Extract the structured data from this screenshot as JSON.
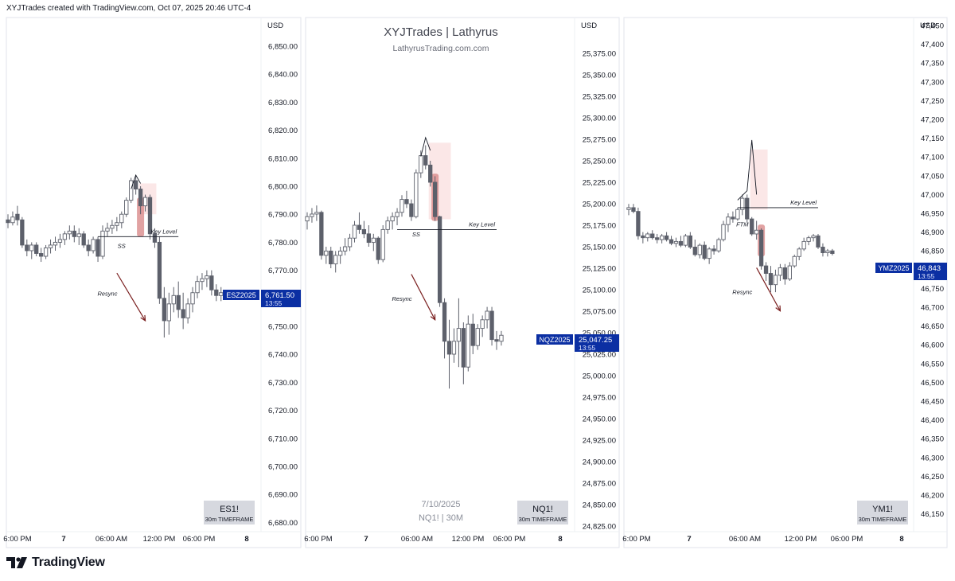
{
  "header": {
    "text": "XYJTrades created with TradingView.com, Oct 07, 2025 20:46 UTC-4"
  },
  "footer": {
    "brand": "TradingView",
    "logo_icon": "tradingview-logo-icon"
  },
  "watermark": {
    "title": "XYJTrades | Lathyrus",
    "subtitle": "LathyrusTrading.com.com"
  },
  "colors": {
    "candle_body": "#5d606b",
    "candle_up_fill": "#ffffff",
    "price_tag": "#0b2fa3",
    "highlight": "#f7c9c9",
    "highlight_candle": "#d98b8b",
    "arrow": "#7a1f1f",
    "symbol_box": "#d1d4dc"
  },
  "chart_data": [
    {
      "type": "candlestick",
      "currency": "USD",
      "symbol": "ES1!",
      "timeframe": "30m TIMEFRAME",
      "price_tag": {
        "ticker": "ESZ2025",
        "price": "6,761.50",
        "countdown": "13:55",
        "value": 6761.5
      },
      "y_ticks": [
        "6,850.00",
        "6,840.00",
        "6,830.00",
        "6,820.00",
        "6,810.00",
        "6,800.00",
        "6,790.00",
        "6,780.00",
        "6,770.00",
        "6,760.00",
        "6,750.00",
        "6,740.00",
        "6,730.00",
        "6,720.00",
        "6,710.00",
        "6,700.00",
        "6,690.00",
        "6,680.00"
      ],
      "y_tick_values": [
        6850,
        6840,
        6830,
        6820,
        6810,
        6800,
        6790,
        6780,
        6770,
        6760,
        6750,
        6740,
        6730,
        6720,
        6710,
        6700,
        6690,
        6680
      ],
      "x_ticks": [
        "6:00 PM",
        "7",
        "06:00 AM",
        "12:00 PM",
        "06:00 PM",
        "8"
      ],
      "x_tick_bars": [
        0,
        20,
        37,
        55,
        69,
        87
      ],
      "ohlc": [
        [
          6788,
          6790,
          6785,
          6787
        ],
        [
          6787,
          6791,
          6786,
          6789
        ],
        [
          6790,
          6793,
          6786,
          6788
        ],
        [
          6788,
          6789,
          6778,
          6779
        ],
        [
          6779,
          6781,
          6775,
          6777
        ],
        [
          6777,
          6780,
          6774,
          6779
        ],
        [
          6779,
          6780,
          6775,
          6776
        ],
        [
          6776,
          6778,
          6773,
          6775
        ],
        [
          6775,
          6779,
          6774,
          6778
        ],
        [
          6778,
          6781,
          6776,
          6779
        ],
        [
          6779,
          6782,
          6777,
          6780
        ],
        [
          6780,
          6783,
          6778,
          6781
        ],
        [
          6781,
          6784,
          6779,
          6783
        ],
        [
          6783,
          6786,
          6781,
          6784
        ],
        [
          6784,
          6786,
          6780,
          6782
        ],
        [
          6782,
          6785,
          6779,
          6783
        ],
        [
          6783,
          6784,
          6778,
          6779
        ],
        [
          6779,
          6781,
          6775,
          6777
        ],
        [
          6777,
          6782,
          6776,
          6781
        ],
        [
          6781,
          6782,
          6773,
          6775
        ],
        [
          6775,
          6786,
          6774,
          6784
        ],
        [
          6784,
          6787,
          6782,
          6785
        ],
        [
          6785,
          6788,
          6783,
          6786
        ],
        [
          6786,
          6789,
          6784,
          6787
        ],
        [
          6787,
          6791,
          6785,
          6790
        ],
        [
          6790,
          6796,
          6789,
          6795
        ],
        [
          6795,
          6803,
          6794,
          6802
        ],
        [
          6802,
          6804,
          6797,
          6799
        ],
        [
          6799,
          6800,
          6790,
          6793
        ],
        [
          6793,
          6797,
          6791,
          6796
        ],
        [
          6796,
          6797,
          6781,
          6783
        ],
        [
          6783,
          6785,
          6778,
          6780
        ],
        [
          6780,
          6782,
          6758,
          6760
        ],
        [
          6760,
          6764,
          6746,
          6752
        ],
        [
          6752,
          6762,
          6747,
          6758
        ],
        [
          6758,
          6764,
          6755,
          6761
        ],
        [
          6761,
          6766,
          6753,
          6756
        ],
        [
          6756,
          6762,
          6749,
          6753
        ],
        [
          6753,
          6760,
          6751,
          6758
        ],
        [
          6758,
          6764,
          6755,
          6762
        ],
        [
          6762,
          6768,
          6760,
          6766
        ],
        [
          6766,
          6769,
          6763,
          6767
        ],
        [
          6767,
          6770,
          6764,
          6768
        ],
        [
          6768,
          6770,
          6761,
          6763
        ],
        [
          6763,
          6765,
          6759,
          6761
        ],
        [
          6761,
          6764,
          6759,
          6762
        ]
      ],
      "annotations": [
        {
          "text": "Key Level",
          "kind": "level",
          "price": 6782,
          "from_bar": 19,
          "to_bar": 36
        },
        {
          "text": "SS",
          "kind": "label",
          "price": 6778,
          "bar": 24
        },
        {
          "text": "Resync",
          "kind": "label",
          "price": 6761,
          "bar": 21
        },
        {
          "kind": "arrow",
          "from_bar": 23,
          "from_price": 6769,
          "to_bar": 29,
          "to_price": 6752
        },
        {
          "kind": "highlight",
          "from_bar": 28,
          "to_bar": 31,
          "low": 6790,
          "high": 6801
        },
        {
          "kind": "highlight-candle",
          "bar": 28,
          "low": 6782,
          "high": 6796
        },
        {
          "kind": "wick-line",
          "points": [
            [
              26,
              6799
            ],
            [
              27,
              6804
            ],
            [
              28,
              6801
            ]
          ]
        }
      ]
    },
    {
      "type": "candlestick",
      "currency": "USD",
      "symbol": "NQ1!",
      "timeframe": "30m TIMEFRAME",
      "date_label": "7/10/2025",
      "sub_label": "NQ1! | 30M",
      "price_tag": {
        "ticker": "NQZ2025",
        "price": "25,047.25",
        "countdown": "13:55",
        "value": 25047.25
      },
      "y_ticks": [
        "25,375.00",
        "25,350.00",
        "25,325.00",
        "25,300.00",
        "25,275.00",
        "25,250.00",
        "25,225.00",
        "25,200.00",
        "25,175.00",
        "25,150.00",
        "25,125.00",
        "25,100.00",
        "25,075.00",
        "25,050.00",
        "25,025.00",
        "25,000.00",
        "24,975.00",
        "24,950.00",
        "24,925.00",
        "24,900.00",
        "24,875.00",
        "24,850.00",
        "24,825.00"
      ],
      "y_tick_values": [
        25375,
        25350,
        25325,
        25300,
        25275,
        25250,
        25225,
        25200,
        25175,
        25150,
        25125,
        25100,
        25075,
        25050,
        25025,
        25000,
        24975,
        24950,
        24925,
        24900,
        24875,
        24850,
        24825
      ],
      "x_ticks": [
        "6:00 PM",
        "7",
        "06:00 AM",
        "12:00 PM",
        "06:00 PM",
        "8"
      ],
      "x_tick_bars": [
        0,
        20,
        37,
        55,
        69,
        87
      ],
      "ohlc": [
        [
          25180,
          25190,
          25170,
          25185
        ],
        [
          25185,
          25195,
          25178,
          25188
        ],
        [
          25188,
          25198,
          25180,
          25190
        ],
        [
          25190,
          25192,
          25135,
          25140
        ],
        [
          25140,
          25150,
          25130,
          25145
        ],
        [
          25145,
          25150,
          25125,
          25130
        ],
        [
          25130,
          25145,
          25120,
          25140
        ],
        [
          25140,
          25150,
          25130,
          25145
        ],
        [
          25145,
          25160,
          25140,
          25150
        ],
        [
          25150,
          25165,
          25145,
          25160
        ],
        [
          25160,
          25180,
          25155,
          25175
        ],
        [
          25175,
          25190,
          25165,
          25170
        ],
        [
          25170,
          25180,
          25160,
          25165
        ],
        [
          25165,
          25175,
          25150,
          25155
        ],
        [
          25155,
          25165,
          25145,
          25160
        ],
        [
          25160,
          25162,
          25130,
          25135
        ],
        [
          25135,
          25175,
          25132,
          25170
        ],
        [
          25170,
          25185,
          25165,
          25180
        ],
        [
          25180,
          25190,
          25170,
          25185
        ],
        [
          25185,
          25195,
          25175,
          25190
        ],
        [
          25190,
          25210,
          25185,
          25205
        ],
        [
          25205,
          25215,
          25195,
          25200
        ],
        [
          25200,
          25205,
          25180,
          25185
        ],
        [
          25185,
          25240,
          25183,
          25236
        ],
        [
          25236,
          25262,
          25230,
          25256
        ],
        [
          25256,
          25268,
          25240,
          25245
        ],
        [
          25245,
          25250,
          25220,
          25225
        ],
        [
          25225,
          25232,
          25180,
          25185
        ],
        [
          25185,
          25186,
          25080,
          25085
        ],
        [
          25085,
          25090,
          25020,
          25040
        ],
        [
          25040,
          25065,
          24985,
          25025
        ],
        [
          25025,
          25055,
          25015,
          25040
        ],
        [
          25040,
          25090,
          25010,
          25055
        ],
        [
          25055,
          25062,
          24990,
          25010
        ],
        [
          25010,
          25070,
          25005,
          25060
        ],
        [
          25060,
          25072,
          25025,
          25035
        ],
        [
          25035,
          25060,
          25030,
          25055
        ],
        [
          25055,
          25070,
          25045,
          25065
        ],
        [
          25065,
          25080,
          25055,
          25075
        ],
        [
          25075,
          25080,
          25035,
          25042
        ],
        [
          25042,
          25052,
          25030,
          25040
        ],
        [
          25040,
          25052,
          25035,
          25047
        ]
      ],
      "annotations": [
        {
          "text": "Key Level",
          "kind": "level",
          "price": 25170,
          "from_bar": 19,
          "to_bar": 40
        },
        {
          "text": "SS",
          "kind": "label",
          "price": 25162,
          "bar": 23
        },
        {
          "text": "Resync",
          "kind": "label",
          "price": 25087,
          "bar": 20
        },
        {
          "kind": "arrow",
          "from_bar": 22,
          "from_price": 25118,
          "to_bar": 27,
          "to_price": 25065
        },
        {
          "kind": "highlight",
          "from_bar": 26,
          "to_bar": 30,
          "low": 25182,
          "high": 25271
        },
        {
          "kind": "highlight-candle",
          "bar": 27,
          "low": 25180,
          "high": 25235
        },
        {
          "kind": "wick-line",
          "points": [
            [
              24,
              25255
            ],
            [
              25,
              25277
            ],
            [
              26,
              25262
            ]
          ]
        }
      ]
    },
    {
      "type": "candlestick",
      "currency": "USD",
      "symbol": "YM1!",
      "timeframe": "30m TIMEFRAME",
      "price_tag": {
        "ticker": "YMZ2025",
        "price": "46,843",
        "countdown": "13:55",
        "value": 46843
      },
      "y_ticks": [
        "47,450",
        "47,400",
        "47,350",
        "47,300",
        "47,250",
        "47,200",
        "47,150",
        "47,100",
        "47,050",
        "47,000",
        "46,950",
        "46,900",
        "46,850",
        "46,800",
        "46,750",
        "46,700",
        "46,650",
        "46,600",
        "46,550",
        "46,500",
        "46,450",
        "46,400",
        "46,350",
        "46,300",
        "46,250",
        "46,200",
        "46,150"
      ],
      "y_tick_values": [
        47450,
        47400,
        47350,
        47300,
        47250,
        47200,
        47150,
        47100,
        47050,
        47000,
        46950,
        46900,
        46850,
        46800,
        46750,
        46700,
        46650,
        46600,
        46550,
        46500,
        46450,
        46400,
        46350,
        46300,
        46250,
        46200,
        46150
      ],
      "x_ticks": [
        "6:00 PM",
        "7",
        "06:00 AM",
        "12:00 PM",
        "06:00 PM",
        "8"
      ],
      "x_tick_bars": [
        0,
        20,
        37,
        55,
        69,
        87
      ],
      "ohlc": [
        [
          46960,
          46975,
          46945,
          46965
        ],
        [
          46965,
          46975,
          46950,
          46955
        ],
        [
          46955,
          46965,
          46880,
          46890
        ],
        [
          46890,
          46900,
          46870,
          46885
        ],
        [
          46885,
          46900,
          46875,
          46895
        ],
        [
          46895,
          46905,
          46880,
          46885
        ],
        [
          46885,
          46895,
          46870,
          46880
        ],
        [
          46880,
          46895,
          46870,
          46890
        ],
        [
          46890,
          46900,
          46875,
          46880
        ],
        [
          46880,
          46890,
          46865,
          46870
        ],
        [
          46870,
          46885,
          46860,
          46875
        ],
        [
          46875,
          46890,
          46860,
          46865
        ],
        [
          46865,
          46895,
          46860,
          46890
        ],
        [
          46890,
          46900,
          46855,
          46860
        ],
        [
          46860,
          46880,
          46835,
          46840
        ],
        [
          46840,
          46870,
          46830,
          46865
        ],
        [
          46865,
          46875,
          46825,
          46830
        ],
        [
          46830,
          46860,
          46815,
          46855
        ],
        [
          46855,
          46865,
          46840,
          46850
        ],
        [
          46850,
          46885,
          46845,
          46880
        ],
        [
          46880,
          46930,
          46875,
          46920
        ],
        [
          46920,
          46950,
          46900,
          46940
        ],
        [
          46940,
          46955,
          46925,
          46935
        ],
        [
          46935,
          46965,
          46930,
          46960
        ],
        [
          46960,
          47000,
          46945,
          46990
        ],
        [
          46990,
          47000,
          46925,
          46935
        ],
        [
          46935,
          46940,
          46890,
          46895
        ],
        [
          46895,
          46930,
          46880,
          46905
        ],
        [
          46905,
          46910,
          46800,
          46810
        ],
        [
          46810,
          46820,
          46770,
          46790
        ],
        [
          46790,
          46810,
          46740,
          46760
        ],
        [
          46760,
          46800,
          46740,
          46785
        ],
        [
          46785,
          46815,
          46770,
          46805
        ],
        [
          46805,
          46815,
          46760,
          46775
        ],
        [
          46775,
          46820,
          46770,
          46810
        ],
        [
          46810,
          46840,
          46805,
          46835
        ],
        [
          46835,
          46860,
          46825,
          46855
        ],
        [
          46855,
          46885,
          46850,
          46875
        ],
        [
          46875,
          46890,
          46865,
          46885
        ],
        [
          46885,
          46895,
          46875,
          46890
        ],
        [
          46890,
          46895,
          46855,
          46860
        ],
        [
          46860,
          46870,
          46835,
          46845
        ],
        [
          46845,
          46855,
          46835,
          46850
        ],
        [
          46850,
          46855,
          46838,
          46843
        ]
      ],
      "annotations": [
        {
          "text": "Key Level",
          "kind": "level",
          "price": 46965,
          "from_bar": 23,
          "to_bar": 40
        },
        {
          "text": "FTM",
          "kind": "label",
          "price": 46915,
          "bar": 24
        },
        {
          "text": "Resync",
          "kind": "label",
          "price": 46735,
          "bar": 24
        },
        {
          "kind": "arrow",
          "from_bar": 27,
          "from_price": 46805,
          "to_bar": 32,
          "to_price": 46690
        },
        {
          "kind": "highlight",
          "from_bar": 26,
          "to_bar": 29,
          "low": 46960,
          "high": 47120
        },
        {
          "kind": "highlight-candle",
          "bar": 28,
          "low": 46835,
          "high": 46920
        },
        {
          "kind": "wick-line",
          "points": [
            [
              23,
              46985
            ],
            [
              25,
              47010
            ],
            [
              26,
              47145
            ],
            [
              27,
              47000
            ]
          ]
        }
      ]
    }
  ]
}
